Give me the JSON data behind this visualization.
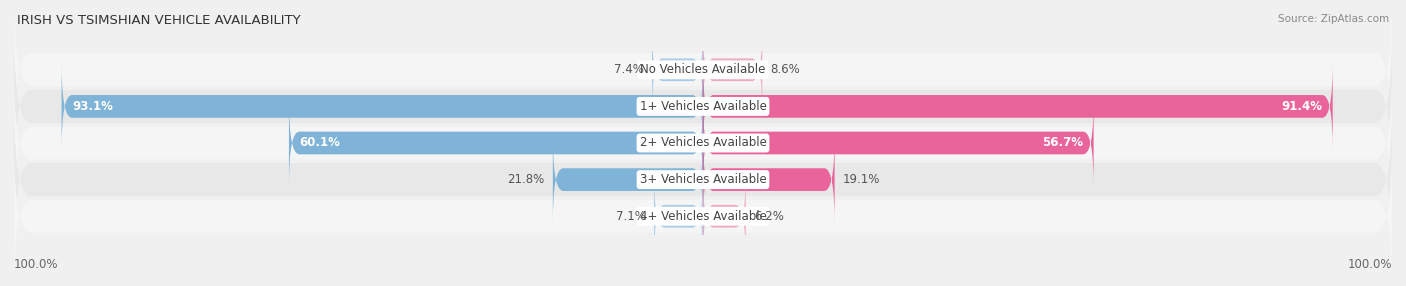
{
  "title": "Irish vs Tsimshian Vehicle Availability",
  "source": "Source: ZipAtlas.com",
  "categories": [
    "No Vehicles Available",
    "1+ Vehicles Available",
    "2+ Vehicles Available",
    "3+ Vehicles Available",
    "4+ Vehicles Available"
  ],
  "irish_values": [
    7.4,
    93.1,
    60.1,
    21.8,
    7.1
  ],
  "tsimshian_values": [
    8.6,
    91.4,
    56.7,
    19.1,
    6.2
  ],
  "irish_color": "#7fb3d8",
  "tsimshian_color": "#e8649a",
  "irish_color_light": "#aacce8",
  "tsimshian_color_light": "#f0a8c0",
  "bar_height": 0.62,
  "max_value": 100.0,
  "label_fontsize": 8.5,
  "title_fontsize": 9.5,
  "source_fontsize": 7.5,
  "legend_fontsize": 8.5,
  "row_bg_odd": "#f5f5f5",
  "row_bg_even": "#e8e8e8",
  "figure_bg": "#f0f0f0"
}
